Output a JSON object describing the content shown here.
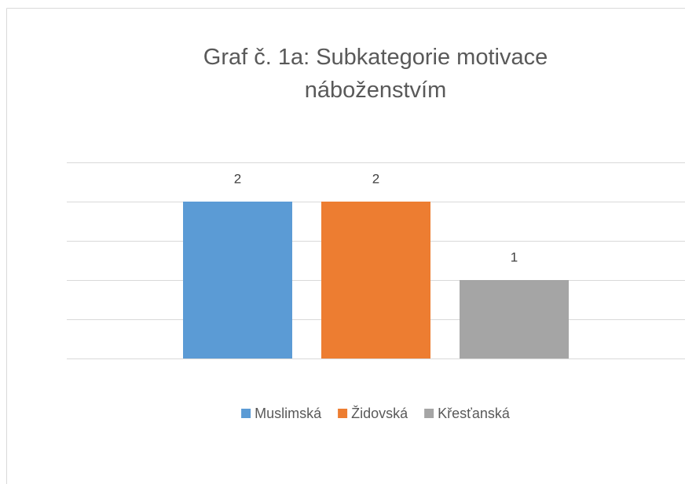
{
  "chart_data": {
    "type": "bar",
    "title": "Graf č. 1a: Subkategorie motivace náboženstvím",
    "series": [
      {
        "name": "Muslimská",
        "color": "#5b9bd5",
        "values": [
          2
        ]
      },
      {
        "name": "Židovská",
        "color": "#ed7d31",
        "values": [
          2
        ]
      },
      {
        "name": "Křesťanská",
        "color": "#a5a5a5",
        "values": [
          1
        ]
      }
    ],
    "ylim": [
      0,
      2.5
    ],
    "yticks": [
      0,
      0.5,
      1,
      1.5,
      2,
      2.5
    ],
    "grid": true,
    "legend": "bottom"
  }
}
